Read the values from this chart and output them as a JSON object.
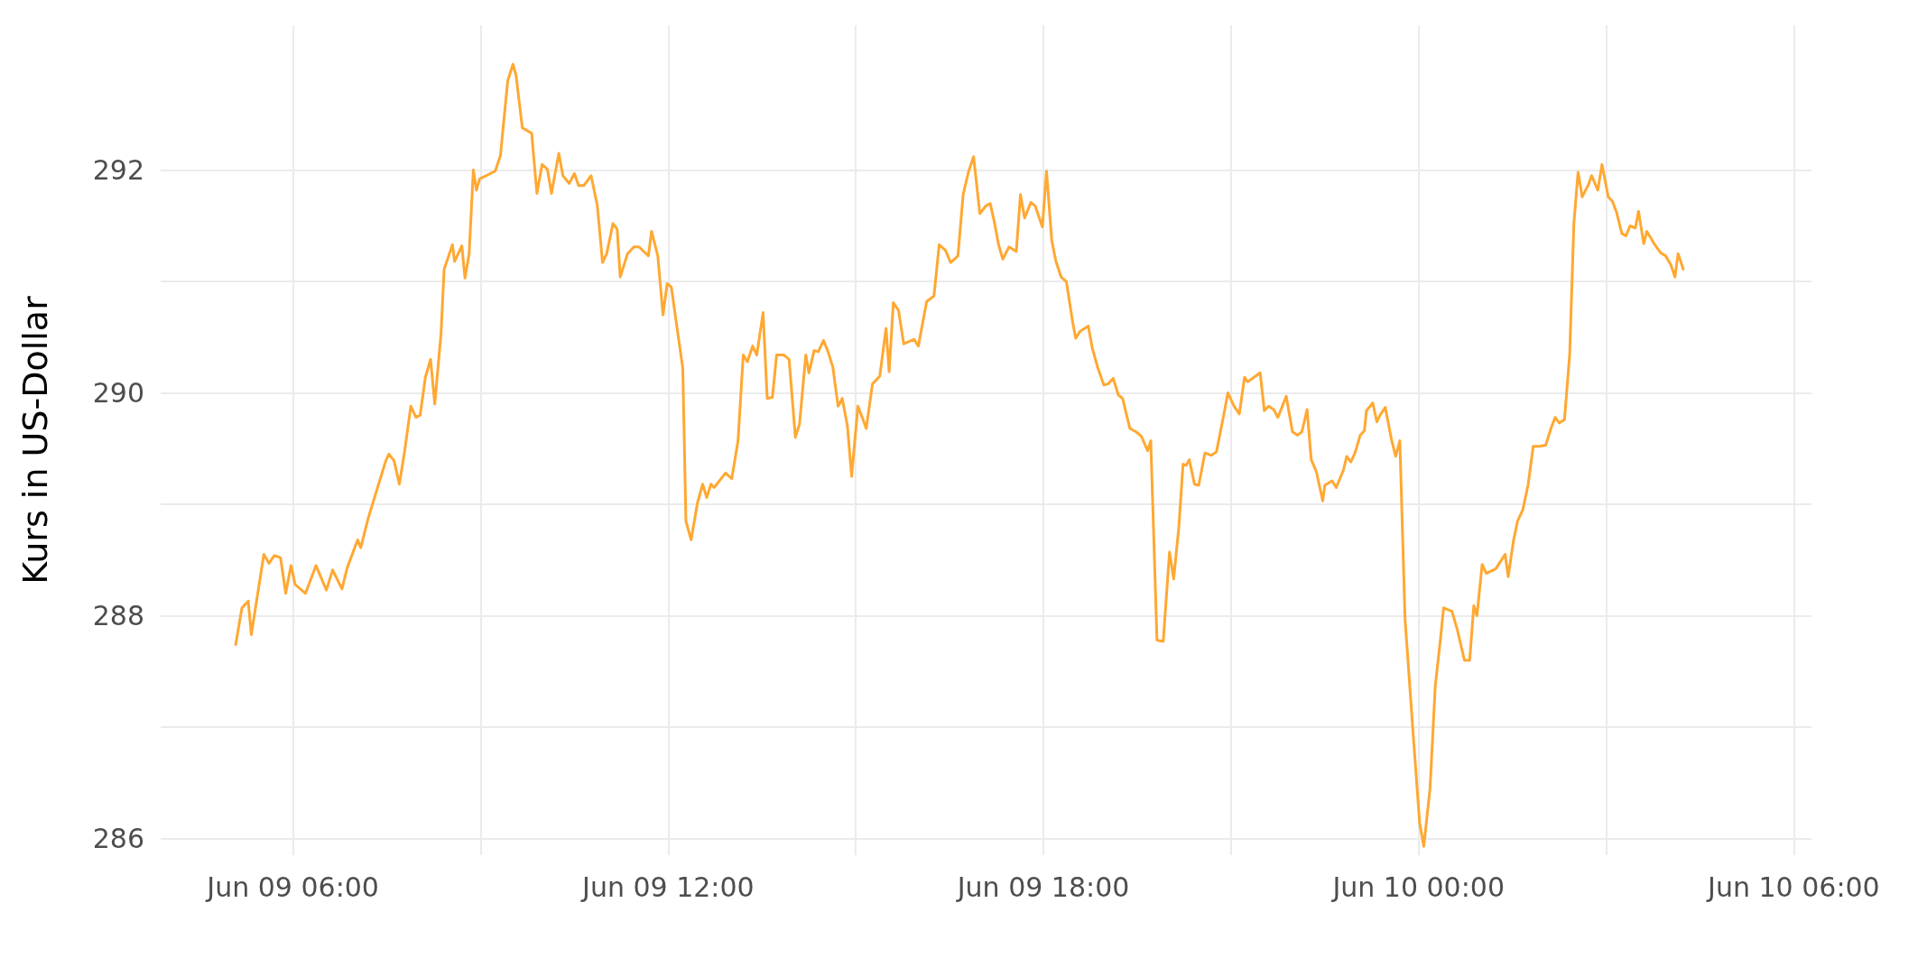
{
  "chart_data": {
    "type": "line",
    "ylabel": "Kurs in US-Dollar",
    "xlim": [
      "--06-09T03:53",
      "--06-10T06:17"
    ],
    "xticks": [
      {
        "value": "--06-09T06:00",
        "label": "Jun 09 06:00"
      },
      {
        "value": "--06-09T09:00",
        "label": null
      },
      {
        "value": "--06-09T12:00",
        "label": "Jun 09 12:00"
      },
      {
        "value": "--06-09T15:00",
        "label": null
      },
      {
        "value": "--06-09T18:00",
        "label": "Jun 09 18:00"
      },
      {
        "value": "--06-09T21:00",
        "label": null
      },
      {
        "value": "--06-10T00:00",
        "label": "Jun 10 00:00"
      },
      {
        "value": "--06-10T03:00",
        "label": null
      },
      {
        "value": "--06-10T06:00",
        "label": "Jun 10 06:00"
      }
    ],
    "ylim": [
      285.85,
      293.3
    ],
    "yticks": [
      286,
      {
        "value": 287,
        "label": null
      },
      288,
      {
        "value": 289,
        "label": null
      },
      290,
      {
        "value": 291,
        "label": null
      },
      292
    ],
    "grid": true,
    "series": [
      {
        "color": "#ffa832",
        "x": [
          "--06-09T05:05",
          "--06-09T05:11",
          "--06-09T05:17",
          "--06-09T05:20",
          "--06-09T05:32",
          "--06-09T05:37",
          "--06-09T05:42",
          "--06-09T05:48",
          "--06-09T05:53",
          "--06-09T05:58",
          "--06-09T06:02",
          "--06-09T06:12",
          "--06-09T06:22",
          "--06-09T06:32",
          "--06-09T06:38",
          "--06-09T06:47",
          "--06-09T06:52",
          "--06-09T07:02",
          "--06-09T07:05",
          "--06-09T07:12",
          "--06-09T07:29",
          "--06-09T07:32",
          "--06-09T07:37",
          "--06-09T07:42",
          "--06-09T07:47",
          "--06-09T07:53",
          "--06-09T07:58",
          "--06-09T08:02",
          "--06-09T08:07",
          "--06-09T08:12",
          "--06-09T08:16",
          "--06-09T08:22",
          "--06-09T08:25",
          "--06-09T08:33",
          "--06-09T08:35",
          "--06-09T08:42",
          "--06-09T08:45",
          "--06-09T08:49",
          "--06-09T08:53",
          "--06-09T08:56",
          "--06-09T08:59",
          "--06-09T09:14",
          "--06-09T09:19",
          "--06-09T09:26",
          "--06-09T09:31",
          "--06-09T09:34",
          "--06-09T09:40",
          "--06-09T09:49",
          "--06-09T09:54",
          "--06-09T09:59",
          "--06-09T10:04",
          "--06-09T10:08",
          "--06-09T10:15",
          "--06-09T10:19",
          "--06-09T10:25",
          "--06-09T10:30",
          "--06-09T10:34",
          "--06-09T10:39",
          "--06-09T10:46",
          "--06-09T10:52",
          "--06-09T10:57",
          "--06-09T11:01",
          "--06-09T11:07",
          "--06-09T11:11",
          "--06-09T11:14",
          "--06-09T11:21",
          "--06-09T11:27",
          "--06-09T11:32",
          "--06-09T11:41",
          "--06-09T11:44",
          "--06-09T11:50",
          "--06-09T11:55",
          "--06-09T11:59",
          "--06-09T12:03",
          "--06-09T12:09",
          "--06-09T12:14",
          "--06-09T12:17",
          "--06-09T12:22",
          "--06-09T12:28",
          "--06-09T12:33",
          "--06-09T12:37",
          "--06-09T12:41",
          "--06-09T12:44",
          "--06-09T12:55",
          "--06-09T13:01",
          "--06-09T13:07",
          "--06-09T13:12",
          "--06-09T13:16",
          "--06-09T13:21",
          "--06-09T13:25",
          "--06-09T13:31",
          "--06-09T13:35",
          "--06-09T13:40",
          "--06-09T13:44",
          "--06-09T13:51",
          "--06-09T13:56",
          "--06-09T14:02",
          "--06-09T14:06",
          "--06-09T14:12",
          "--06-09T14:15",
          "--06-09T14:20",
          "--06-09T14:24",
          "--06-09T14:29",
          "--06-09T14:33",
          "--06-09T14:38",
          "--06-09T14:43",
          "--06-09T14:47",
          "--06-09T14:52",
          "--06-09T14:56",
          "--06-09T15:02",
          "--06-09T15:07",
          "--06-09T15:10",
          "--06-09T15:16",
          "--06-09T15:23",
          "--06-09T15:29",
          "--06-09T15:32",
          "--06-09T15:36",
          "--06-09T15:41",
          "--06-09T15:46",
          "--06-09T15:56",
          "--06-09T16:00",
          "--06-09T16:05",
          "--06-09T16:08",
          "--06-09T16:15",
          "--06-09T16:20",
          "--06-09T16:26",
          "--06-09T16:31",
          "--06-09T16:38",
          "--06-09T16:43",
          "--06-09T16:48",
          "--06-09T16:53",
          "--06-09T16:59",
          "--06-09T17:05",
          "--06-09T17:09",
          "--06-09T17:13",
          "--06-09T17:17",
          "--06-09T17:21",
          "--06-09T17:27",
          "--06-09T17:34",
          "--06-09T17:38",
          "--06-09T17:42",
          "--06-09T17:48",
          "--06-09T17:52",
          "--06-09T17:59",
          "--06-09T18:03",
          "--06-09T18:08",
          "--06-09T18:12",
          "--06-09T18:17",
          "--06-09T18:22",
          "--06-09T18:28",
          "--06-09T18:31",
          "--06-09T18:35",
          "--06-09T18:43",
          "--06-09T18:47",
          "--06-09T18:52",
          "--06-09T18:58",
          "--06-09T19:02",
          "--06-09T19:07",
          "--06-09T19:12",
          "--06-09T19:16",
          "--06-09T19:23",
          "--06-09T19:29",
          "--06-09T19:34",
          "--06-09T19:40",
          "--06-09T19:43",
          "--06-09T19:49",
          "--06-09T19:55",
          "--06-09T20:01",
          "--06-09T20:05",
          "--06-09T20:10",
          "--06-09T20:14",
          "--06-09T20:17",
          "--06-09T20:20",
          "--06-09T20:25",
          "--06-09T20:29",
          "--06-09T20:35",
          "--06-09T20:41",
          "--06-09T20:46",
          "--06-09T20:53",
          "--06-09T20:57",
          "--06-09T21:03",
          "--06-09T21:08",
          "--06-09T21:13",
          "--06-09T21:16",
          "--06-09T21:28",
          "--06-09T21:32",
          "--06-09T21:36",
          "--06-09T21:41",
          "--06-09T21:45",
          "--06-09T21:53",
          "--06-09T21:59",
          "--06-09T22:04",
          "--06-09T22:08",
          "--06-09T22:13",
          "--06-09T22:17",
          "--06-09T22:22",
          "--06-09T22:28",
          "--06-09T22:30",
          "--06-09T22:37",
          "--06-09T22:41",
          "--06-09T22:48",
          "--06-09T22:51",
          "--06-09T22:55",
          "--06-09T22:59",
          "--06-09T23:04",
          "--06-09T23:08",
          "--06-09T23:10",
          "--06-09T23:16",
          "--06-09T23:20",
          "--06-09T23:23",
          "--06-09T23:28",
          "--06-09T23:34",
          "--06-09T23:38",
          "--06-09T23:42",
          "--06-09T23:47",
          "--06-09T23:55",
          "--06-10T00:01",
          "--06-10T00:05",
          "--06-10T00:11",
          "--06-10T00:16",
          "--06-10T00:21",
          "--06-10T00:24",
          "--06-10T00:32",
          "--06-10T00:37",
          "--06-10T00:41",
          "--06-10T00:44",
          "--06-10T00:49",
          "--06-10T00:53",
          "--06-10T00:56",
          "--06-10T01:01",
          "--06-10T01:05",
          "--06-10T01:14",
          "--06-10T01:23",
          "--06-10T01:26",
          "--06-10T01:31",
          "--06-10T01:35",
          "--06-10T01:40",
          "--06-10T01:45",
          "--06-10T01:50",
          "--06-10T01:56",
          "--06-10T02:02",
          "--06-10T02:07",
          "--06-10T02:11",
          "--06-10T02:15",
          "--06-10T02:20",
          "--06-10T02:25",
          "--06-10T02:29",
          "--06-10T02:33",
          "--06-10T02:37",
          "--06-10T02:43",
          "--06-10T02:46",
          "--06-10T02:52",
          "--06-10T02:56",
          "--06-10T03:02",
          "--06-10T03:06",
          "--06-10T03:10",
          "--06-10T03:15",
          "--06-10T03:19",
          "--06-10T03:23",
          "--06-10T03:28",
          "--06-10T03:31",
          "--06-10T03:36",
          "--06-10T03:39",
          "--06-10T03:46",
          "--06-10T03:52",
          "--06-10T03:57",
          "--06-10T04:02",
          "--06-10T04:06",
          "--06-10T04:09",
          "--06-10T04:14"
        ],
        "values": [
          287.74,
          288.07,
          288.13,
          287.83,
          288.55,
          288.47,
          288.54,
          288.52,
          288.2,
          288.45,
          288.28,
          288.2,
          288.45,
          288.23,
          288.41,
          288.24,
          288.43,
          288.68,
          288.61,
          288.87,
          289.39,
          289.45,
          289.39,
          289.18,
          289.47,
          289.88,
          289.78,
          289.8,
          290.14,
          290.3,
          289.9,
          290.53,
          291.11,
          291.33,
          291.18,
          291.32,
          291.03,
          291.25,
          292.0,
          291.82,
          291.92,
          291.99,
          292.13,
          292.8,
          292.95,
          292.85,
          292.38,
          292.33,
          291.79,
          292.05,
          292.01,
          291.79,
          292.15,
          291.95,
          291.88,
          291.97,
          291.86,
          291.86,
          291.95,
          291.68,
          291.17,
          291.25,
          291.52,
          291.47,
          291.04,
          291.25,
          291.31,
          291.31,
          291.23,
          291.45,
          291.23,
          290.7,
          290.98,
          290.95,
          290.55,
          290.22,
          288.85,
          288.68,
          289.01,
          289.18,
          289.06,
          289.18,
          289.15,
          289.28,
          289.23,
          289.57,
          290.34,
          290.28,
          290.42,
          290.34,
          290.72,
          289.95,
          289.96,
          290.34,
          290.34,
          290.3,
          289.6,
          289.72,
          290.34,
          290.18,
          290.38,
          290.37,
          290.47,
          290.38,
          290.23,
          289.88,
          289.95,
          289.7,
          289.25,
          289.88,
          289.76,
          289.68,
          290.08,
          290.15,
          290.58,
          290.19,
          290.81,
          290.74,
          290.44,
          290.48,
          290.42,
          290.67,
          290.82,
          290.87,
          291.33,
          291.28,
          291.17,
          291.23,
          291.78,
          291.98,
          292.12,
          291.61,
          291.68,
          291.7,
          291.53,
          291.33,
          291.2,
          291.31,
          291.27,
          291.78,
          291.57,
          291.71,
          291.68,
          291.49,
          291.99,
          291.37,
          291.18,
          291.04,
          291.0,
          290.64,
          290.49,
          290.55,
          290.6,
          290.4,
          290.23,
          290.07,
          290.08,
          290.13,
          289.98,
          289.95,
          289.68,
          289.65,
          289.61,
          289.48,
          289.57,
          287.78,
          287.77,
          288.57,
          288.33,
          288.8,
          289.36,
          289.35,
          289.4,
          289.18,
          289.17,
          289.46,
          289.44,
          289.47,
          289.8,
          290.0,
          289.88,
          289.81,
          290.14,
          290.1,
          290.18,
          289.84,
          289.88,
          289.85,
          289.78,
          289.97,
          289.65,
          289.62,
          289.65,
          289.85,
          289.4,
          289.29,
          289.03,
          289.17,
          289.21,
          289.15,
          289.31,
          289.43,
          289.38,
          289.46,
          289.62,
          289.66,
          289.84,
          289.91,
          289.74,
          289.8,
          289.87,
          289.58,
          289.43,
          289.57,
          287.97,
          286.91,
          286.14,
          285.93,
          286.45,
          287.37,
          287.79,
          288.07,
          288.04,
          287.88,
          287.72,
          287.6,
          287.6,
          288.09,
          288.0,
          288.46,
          288.38,
          288.42,
          288.55,
          288.35,
          288.67,
          288.85,
          288.95,
          289.17,
          289.52,
          289.52,
          289.53,
          289.68,
          289.78,
          289.73,
          289.76,
          290.35,
          291.52,
          291.98,
          291.76,
          291.87,
          291.95,
          291.82,
          292.05,
          291.76,
          291.72,
          291.62,
          291.43,
          291.41,
          291.5,
          291.48,
          291.63,
          291.34,
          291.45,
          291.34,
          291.26,
          291.23,
          291.15,
          291.04,
          291.25,
          291.11
        ]
      }
    ]
  }
}
